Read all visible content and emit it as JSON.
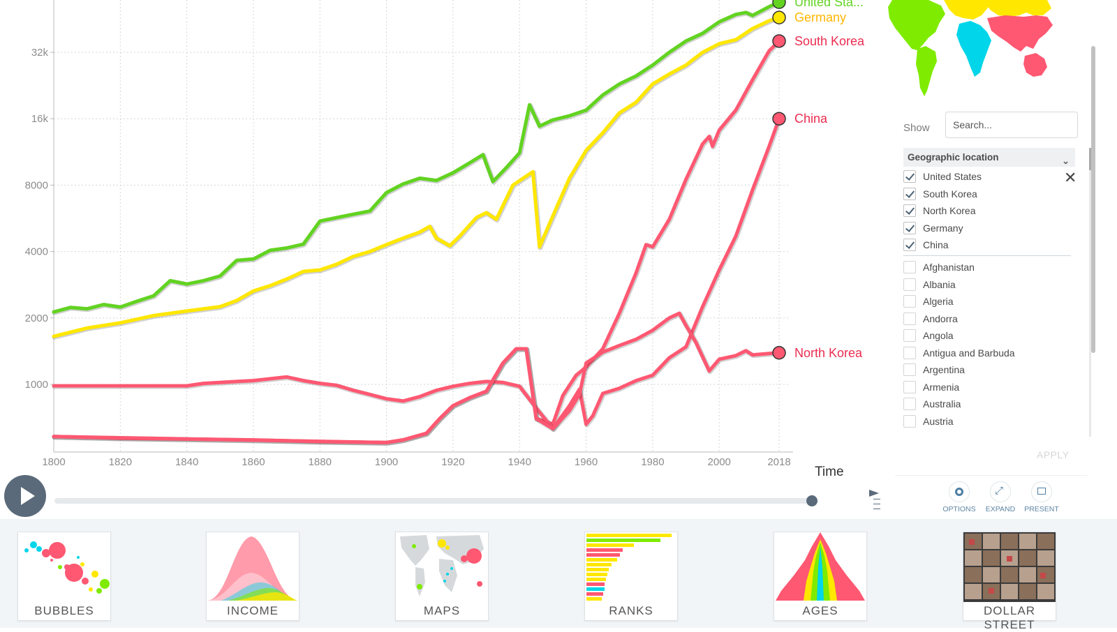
{
  "chart_data": {
    "type": "line",
    "xlabel": "Time",
    "ylabel": "",
    "y_scale": "log",
    "xlim": [
      1800,
      2018
    ],
    "x_ticks": [
      1800,
      1820,
      1840,
      1860,
      1880,
      1900,
      1920,
      1940,
      1960,
      1980,
      2000,
      2018
    ],
    "y_ticks": [
      1000,
      2000,
      4000,
      8000,
      16000,
      32000
    ],
    "y_tick_labels": [
      "1000",
      "2000",
      "4000",
      "8000",
      "16k",
      "32k"
    ],
    "grid": true,
    "series": [
      {
        "name": "United Sta...",
        "color": "#62d321",
        "label_color": "#62d321",
        "points": [
          [
            1800,
            2130
          ],
          [
            1805,
            2230
          ],
          [
            1810,
            2200
          ],
          [
            1815,
            2300
          ],
          [
            1820,
            2240
          ],
          [
            1825,
            2380
          ],
          [
            1830,
            2520
          ],
          [
            1835,
            2950
          ],
          [
            1840,
            2850
          ],
          [
            1845,
            2950
          ],
          [
            1850,
            3100
          ],
          [
            1855,
            3650
          ],
          [
            1860,
            3700
          ],
          [
            1865,
            4050
          ],
          [
            1870,
            4150
          ],
          [
            1875,
            4320
          ],
          [
            1880,
            5500
          ],
          [
            1885,
            5700
          ],
          [
            1890,
            5900
          ],
          [
            1895,
            6100
          ],
          [
            1900,
            7400
          ],
          [
            1905,
            8100
          ],
          [
            1910,
            8600
          ],
          [
            1915,
            8400
          ],
          [
            1920,
            9100
          ],
          [
            1925,
            10100
          ],
          [
            1929,
            11000
          ],
          [
            1932,
            8300
          ],
          [
            1936,
            9600
          ],
          [
            1940,
            11200
          ],
          [
            1943,
            18500
          ],
          [
            1946,
            14800
          ],
          [
            1950,
            15800
          ],
          [
            1955,
            16500
          ],
          [
            1960,
            17500
          ],
          [
            1965,
            20500
          ],
          [
            1970,
            23000
          ],
          [
            1975,
            25000
          ],
          [
            1980,
            28000
          ],
          [
            1985,
            32000
          ],
          [
            1990,
            36000
          ],
          [
            1995,
            39000
          ],
          [
            2000,
            44000
          ],
          [
            2005,
            47500
          ],
          [
            2008,
            48500
          ],
          [
            2010,
            47000
          ],
          [
            2015,
            51500
          ],
          [
            2018,
            54000
          ]
        ],
        "end_value": 54000
      },
      {
        "name": "Germany",
        "color": "#ffe700",
        "label_color": "#ffb600",
        "points": [
          [
            1800,
            1650
          ],
          [
            1810,
            1800
          ],
          [
            1820,
            1900
          ],
          [
            1830,
            2050
          ],
          [
            1840,
            2150
          ],
          [
            1850,
            2250
          ],
          [
            1855,
            2400
          ],
          [
            1860,
            2650
          ],
          [
            1865,
            2800
          ],
          [
            1870,
            3000
          ],
          [
            1875,
            3250
          ],
          [
            1880,
            3300
          ],
          [
            1885,
            3500
          ],
          [
            1890,
            3800
          ],
          [
            1895,
            4000
          ],
          [
            1900,
            4300
          ],
          [
            1905,
            4600
          ],
          [
            1910,
            4900
          ],
          [
            1913,
            5200
          ],
          [
            1915,
            4600
          ],
          [
            1919,
            4250
          ],
          [
            1922,
            4700
          ],
          [
            1927,
            5700
          ],
          [
            1930,
            6000
          ],
          [
            1933,
            5600
          ],
          [
            1938,
            8000
          ],
          [
            1944,
            9200
          ],
          [
            1946,
            4200
          ],
          [
            1950,
            5800
          ],
          [
            1955,
            8600
          ],
          [
            1960,
            11500
          ],
          [
            1965,
            13800
          ],
          [
            1970,
            17000
          ],
          [
            1975,
            19000
          ],
          [
            1980,
            23000
          ],
          [
            1985,
            25500
          ],
          [
            1990,
            28000
          ],
          [
            1995,
            32000
          ],
          [
            2000,
            35000
          ],
          [
            2005,
            36500
          ],
          [
            2010,
            41000
          ],
          [
            2015,
            44500
          ],
          [
            2018,
            46000
          ]
        ],
        "end_value": 46000
      },
      {
        "name": "South Korea",
        "color": "#ff5872",
        "label_color": "#ec2c50",
        "points": [
          [
            1800,
            580
          ],
          [
            1820,
            570
          ],
          [
            1840,
            565
          ],
          [
            1860,
            560
          ],
          [
            1880,
            550
          ],
          [
            1900,
            545
          ],
          [
            1905,
            560
          ],
          [
            1912,
            600
          ],
          [
            1916,
            700
          ],
          [
            1920,
            800
          ],
          [
            1925,
            870
          ],
          [
            1930,
            930
          ],
          [
            1935,
            1250
          ],
          [
            1939,
            1450
          ],
          [
            1942,
            1450
          ],
          [
            1945,
            700
          ],
          [
            1950,
            660
          ],
          [
            1953,
            890
          ],
          [
            1957,
            1100
          ],
          [
            1960,
            1200
          ],
          [
            1965,
            1450
          ],
          [
            1970,
            2100
          ],
          [
            1975,
            3200
          ],
          [
            1978,
            4300
          ],
          [
            1980,
            4200
          ],
          [
            1985,
            5600
          ],
          [
            1990,
            8500
          ],
          [
            1995,
            12300
          ],
          [
            1997,
            13300
          ],
          [
            1998,
            12000
          ],
          [
            2000,
            14200
          ],
          [
            2005,
            17500
          ],
          [
            2010,
            24000
          ],
          [
            2015,
            32500
          ],
          [
            2018,
            36000
          ]
        ],
        "end_value": 36000
      },
      {
        "name": "China",
        "color": "#ff5872",
        "label_color": "#ec2c50",
        "points": [
          [
            1800,
            985
          ],
          [
            1810,
            985
          ],
          [
            1820,
            985
          ],
          [
            1830,
            985
          ],
          [
            1840,
            985
          ],
          [
            1845,
            1010
          ],
          [
            1850,
            1020
          ],
          [
            1855,
            1030
          ],
          [
            1860,
            1040
          ],
          [
            1865,
            1060
          ],
          [
            1870,
            1080
          ],
          [
            1875,
            1040
          ],
          [
            1880,
            1010
          ],
          [
            1885,
            990
          ],
          [
            1890,
            940
          ],
          [
            1895,
            900
          ],
          [
            1900,
            860
          ],
          [
            1905,
            840
          ],
          [
            1910,
            880
          ],
          [
            1915,
            940
          ],
          [
            1920,
            980
          ],
          [
            1925,
            1010
          ],
          [
            1930,
            1030
          ],
          [
            1935,
            1020
          ],
          [
            1940,
            980
          ],
          [
            1945,
            780
          ],
          [
            1950,
            630
          ],
          [
            1955,
            800
          ],
          [
            1958,
            950
          ],
          [
            1960,
            660
          ],
          [
            1962,
            720
          ],
          [
            1965,
            910
          ],
          [
            1970,
            960
          ],
          [
            1975,
            1040
          ],
          [
            1980,
            1100
          ],
          [
            1985,
            1320
          ],
          [
            1990,
            1480
          ],
          [
            1995,
            2250
          ],
          [
            2000,
            3300
          ],
          [
            2005,
            4700
          ],
          [
            2010,
            7600
          ],
          [
            2015,
            12000
          ],
          [
            2018,
            16000
          ]
        ],
        "end_value": 16000
      },
      {
        "name": "North Korea",
        "color": "#ff5872",
        "label_color": "#ec2c50",
        "points": [
          [
            1800,
            580
          ],
          [
            1900,
            545
          ],
          [
            1905,
            560
          ],
          [
            1912,
            600
          ],
          [
            1916,
            700
          ],
          [
            1920,
            800
          ],
          [
            1925,
            870
          ],
          [
            1930,
            930
          ],
          [
            1935,
            1250
          ],
          [
            1939,
            1450
          ],
          [
            1942,
            1450
          ],
          [
            1945,
            700
          ],
          [
            1950,
            630
          ],
          [
            1955,
            760
          ],
          [
            1958,
            900
          ],
          [
            1960,
            1250
          ],
          [
            1965,
            1400
          ],
          [
            1970,
            1500
          ],
          [
            1975,
            1600
          ],
          [
            1980,
            1760
          ],
          [
            1985,
            2000
          ],
          [
            1988,
            2100
          ],
          [
            1990,
            1850
          ],
          [
            1993,
            1550
          ],
          [
            1997,
            1150
          ],
          [
            2000,
            1300
          ],
          [
            2005,
            1350
          ],
          [
            2008,
            1420
          ],
          [
            2010,
            1360
          ],
          [
            2015,
            1380
          ],
          [
            2018,
            1390
          ]
        ],
        "end_value": 1390
      }
    ]
  },
  "x_axis_label": "Time",
  "sidebar": {
    "show_label": "Show",
    "search_placeholder": "Search...",
    "group_header": "Geographic location",
    "selected": [
      "United States",
      "South Korea",
      "North Korea",
      "Germany",
      "China"
    ],
    "unselected": [
      "Afghanistan",
      "Albania",
      "Algeria",
      "Andorra",
      "Angola",
      "Antigua and Barbuda",
      "Argentina",
      "Armenia",
      "Australia",
      "Austria"
    ],
    "apply_label": "APPLY"
  },
  "toolbar": {
    "options_label": "OPTIONS",
    "expand_label": "EXPAND",
    "present_label": "PRESENT"
  },
  "tools": [
    {
      "key": "bubbles",
      "label": "BUBBLES"
    },
    {
      "key": "income",
      "label": "INCOME"
    },
    {
      "key": "maps",
      "label": "MAPS"
    },
    {
      "key": "ranks",
      "label": "RANKS"
    },
    {
      "key": "ages",
      "label": "AGES"
    },
    {
      "key": "dollar-street",
      "label": "DOLLAR STREET"
    }
  ],
  "colors": {
    "americas": "#7feb00",
    "africa": "#00d5e9",
    "asia": "#ff5872",
    "europe": "#ffe700",
    "control_dark": "#5a6a7a",
    "link_blue": "#5e86a3"
  }
}
